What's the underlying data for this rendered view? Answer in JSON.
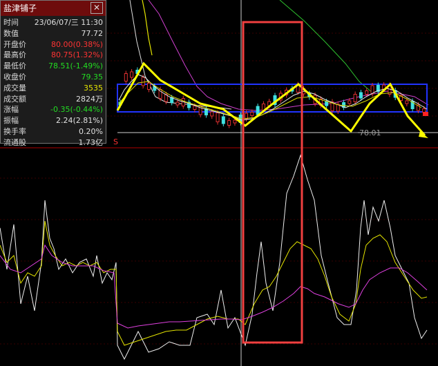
{
  "panel": {
    "title": "盐津铺子",
    "rows": [
      {
        "label": "时间",
        "value": "23/06/07/三 11:30",
        "color": "#e0e0e0"
      },
      {
        "label": "数值",
        "value": "77.72",
        "color": "#e0e0e0"
      },
      {
        "label": "开盘价",
        "value": "80.00(0.38%)",
        "color": "#ff3333"
      },
      {
        "label": "最高价",
        "value": "80.75(1.32%)",
        "color": "#ff3333"
      },
      {
        "label": "最低价",
        "value": "78.51(-1.49%)",
        "color": "#22dd22"
      },
      {
        "label": "收盘价",
        "value": "79.35",
        "color": "#22dd22"
      },
      {
        "label": "成交量",
        "value": "3535",
        "color": "#e5e500"
      },
      {
        "label": "成交额",
        "value": "2824万",
        "color": "#e0e0e0"
      },
      {
        "label": "涨幅",
        "value": "-0.35(-0.44%)",
        "color": "#22dd22"
      },
      {
        "label": "振幅",
        "value": "2.24(2.81%)",
        "color": "#e0e0e0"
      },
      {
        "label": "换手率",
        "value": "0.20%",
        "color": "#e0e0e0"
      },
      {
        "label": "流通股",
        "value": "1.73亿",
        "color": "#e0e0e0"
      }
    ]
  },
  "chart": {
    "price_label": "78.01",
    "marker_label": "S"
  }
}
